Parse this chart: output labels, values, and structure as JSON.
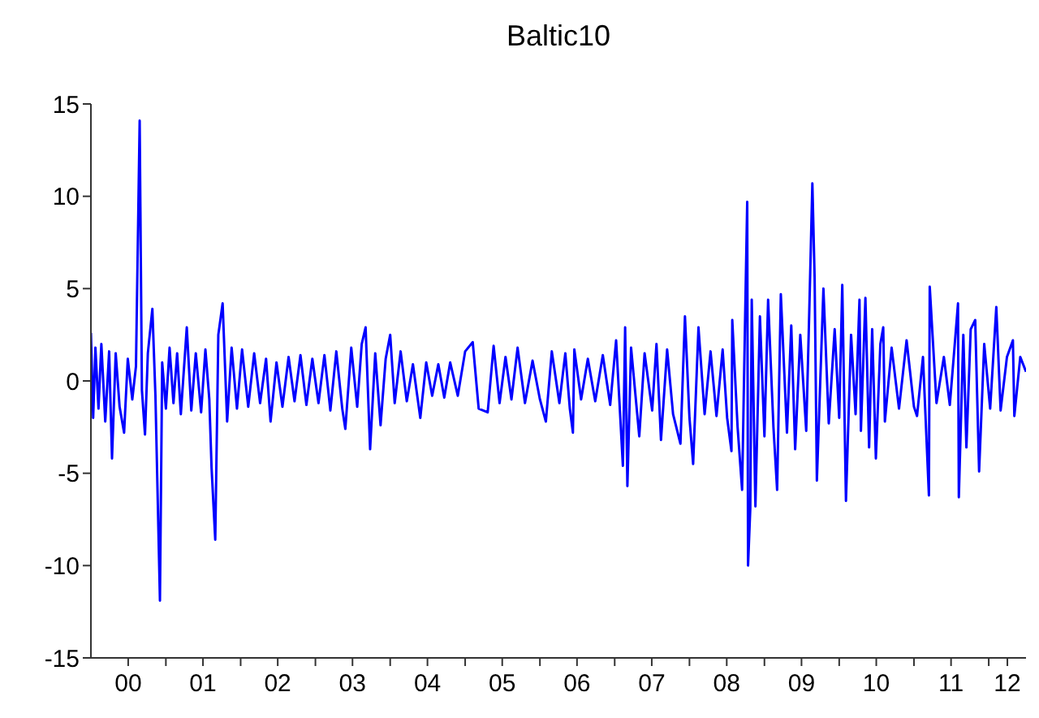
{
  "chart_data": {
    "type": "line",
    "title": "Baltic10",
    "color": "#0000ff",
    "xlim": [
      "2000-01-01",
      "2012-07-01"
    ],
    "xticks": [
      {
        "value": "2000-07-01",
        "label": "00"
      },
      {
        "value": "2001-01-01",
        "label": null
      },
      {
        "value": "2001-07-01",
        "label": "01"
      },
      {
        "value": "2002-01-01",
        "label": null
      },
      {
        "value": "2002-07-01",
        "label": "02"
      },
      {
        "value": "2003-01-01",
        "label": null
      },
      {
        "value": "2003-07-01",
        "label": "03"
      },
      {
        "value": "2004-01-01",
        "label": null
      },
      {
        "value": "2004-07-01",
        "label": "04"
      },
      {
        "value": "2005-01-01",
        "label": null
      },
      {
        "value": "2005-07-01",
        "label": "05"
      },
      {
        "value": "2006-01-01",
        "label": null
      },
      {
        "value": "2006-07-01",
        "label": "06"
      },
      {
        "value": "2007-01-01",
        "label": null
      },
      {
        "value": "2007-07-01",
        "label": "07"
      },
      {
        "value": "2008-01-01",
        "label": null
      },
      {
        "value": "2008-07-01",
        "label": "08"
      },
      {
        "value": "2009-01-01",
        "label": null
      },
      {
        "value": "2009-07-01",
        "label": "09"
      },
      {
        "value": "2010-01-01",
        "label": null
      },
      {
        "value": "2010-07-01",
        "label": "10"
      },
      {
        "value": "2011-01-01",
        "label": null
      },
      {
        "value": "2011-07-01",
        "label": "11"
      },
      {
        "value": "2012-01-01",
        "label": null
      },
      {
        "value": "2012-04-01",
        "label": "12"
      }
    ],
    "ylim": [
      -15,
      15
    ],
    "yticks": [
      -15,
      -10,
      -5,
      0,
      5,
      10,
      15
    ],
    "x": [
      "2000-01-01",
      "2000-01-12",
      "2000-01-23",
      "2000-02-07",
      "2000-02-21",
      "2000-03-11",
      "2000-03-30",
      "2000-04-13",
      "2000-05-01",
      "2000-05-20",
      "2000-06-11",
      "2000-06-29",
      "2000-07-21",
      "2000-08-08",
      "2000-08-26",
      "2000-09-06",
      "2000-09-21",
      "2000-10-05",
      "2000-10-27",
      "2000-11-11",
      "2000-12-03",
      "2000-12-14",
      "2001-01-01",
      "2001-01-19",
      "2001-02-07",
      "2001-02-25",
      "2001-03-15",
      "2001-04-13",
      "2001-05-05",
      "2001-05-27",
      "2001-06-22",
      "2001-07-13",
      "2001-08-01",
      "2001-08-12",
      "2001-08-30",
      "2001-09-14",
      "2001-10-05",
      "2001-10-27",
      "2001-11-18",
      "2001-12-14",
      "2002-01-08",
      "2002-02-07",
      "2002-03-08",
      "2002-04-06",
      "2002-05-05",
      "2002-05-27",
      "2002-06-25",
      "2002-07-24",
      "2002-08-23",
      "2002-09-21",
      "2002-10-20",
      "2002-11-18",
      "2002-12-17",
      "2003-01-16",
      "2003-02-14",
      "2003-03-15",
      "2003-04-13",
      "2003-05-12",
      "2003-05-27",
      "2003-06-25",
      "2003-07-24",
      "2003-08-15",
      "2003-09-03",
      "2003-09-25",
      "2003-10-20",
      "2003-11-15",
      "2003-12-10",
      "2004-01-01",
      "2004-01-23",
      "2004-02-21",
      "2004-03-22",
      "2004-04-21",
      "2004-05-27",
      "2004-06-25",
      "2004-07-24",
      "2004-08-23",
      "2004-09-21",
      "2004-10-20",
      "2004-11-26",
      "2005-01-01",
      "2005-02-07",
      "2005-03-08",
      "2005-04-21",
      "2005-05-20",
      "2005-06-18",
      "2005-07-17",
      "2005-08-15",
      "2005-09-14",
      "2005-10-20",
      "2005-11-26",
      "2006-01-01",
      "2006-01-30",
      "2006-02-28",
      "2006-04-06",
      "2006-05-05",
      "2006-05-27",
      "2006-06-11",
      "2006-06-18",
      "2006-07-21",
      "2006-08-23",
      "2006-09-28",
      "2006-11-04",
      "2006-12-10",
      "2007-01-08",
      "2007-02-10",
      "2007-02-21",
      "2007-03-04",
      "2007-03-22",
      "2007-05-01",
      "2007-05-27",
      "2007-07-03",
      "2007-07-24",
      "2007-08-15",
      "2007-09-14",
      "2007-10-13",
      "2007-11-18",
      "2007-12-10",
      "2008-01-01",
      "2008-01-19",
      "2008-02-14",
      "2008-03-15",
      "2008-04-13",
      "2008-05-12",
      "2008-06-11",
      "2008-07-03",
      "2008-07-24",
      "2008-07-28",
      "2008-08-23",
      "2008-09-14",
      "2008-09-28",
      "2008-10-09",
      "2008-10-13",
      "2008-10-24",
      "2008-10-31",
      "2008-11-18",
      "2008-12-10",
      "2009-01-01",
      "2009-01-19",
      "2009-02-14",
      "2009-03-04",
      "2009-03-22",
      "2009-04-21",
      "2009-05-12",
      "2009-05-31",
      "2009-06-25",
      "2009-07-24",
      "2009-08-08",
      "2009-08-23",
      "2009-09-03",
      "2009-09-14",
      "2009-10-16",
      "2009-11-11",
      "2009-12-10",
      "2010-01-01",
      "2010-01-16",
      "2010-02-03",
      "2010-02-28",
      "2010-03-22",
      "2010-04-10",
      "2010-04-17",
      "2010-05-09",
      "2010-05-27",
      "2010-06-11",
      "2010-06-29",
      "2010-07-21",
      "2010-08-04",
      "2010-08-12",
      "2010-09-14",
      "2010-10-20",
      "2010-11-26",
      "2011-01-01",
      "2011-01-16",
      "2011-02-14",
      "2011-03-15",
      "2011-03-19",
      "2011-04-21",
      "2011-05-27",
      "2011-06-25",
      "2011-07-17",
      "2011-08-04",
      "2011-08-08",
      "2011-08-30",
      "2011-09-14",
      "2011-10-05",
      "2011-10-27",
      "2011-11-15",
      "2011-12-10",
      "2012-01-08",
      "2012-02-07",
      "2012-02-28",
      "2012-03-30",
      "2012-04-28",
      "2012-05-05",
      "2012-06-03",
      "2012-07-01"
    ],
    "values": [
      2.6,
      -2.0,
      1.8,
      -1.5,
      2.0,
      -2.2,
      1.6,
      -4.2,
      1.5,
      -1.4,
      -2.8,
      1.2,
      -1.0,
      0.8,
      14.1,
      -0.5,
      -2.9,
      1.5,
      3.9,
      -0.8,
      -11.9,
      1.0,
      -1.5,
      1.8,
      -1.2,
      1.5,
      -1.8,
      2.9,
      -1.6,
      1.5,
      -1.7,
      1.7,
      -1.0,
      -4.7,
      -8.6,
      2.5,
      4.2,
      -2.2,
      1.8,
      -1.5,
      1.7,
      -1.4,
      1.5,
      -1.2,
      1.2,
      -2.2,
      1.0,
      -1.4,
      1.3,
      -1.1,
      1.4,
      -1.3,
      1.2,
      -1.2,
      1.4,
      -1.6,
      1.6,
      -1.5,
      -2.6,
      1.8,
      -1.4,
      2.0,
      2.9,
      -3.7,
      1.5,
      -2.4,
      1.2,
      2.5,
      -1.2,
      1.6,
      -1.1,
      0.9,
      -2.0,
      1.0,
      -0.8,
      0.9,
      -0.9,
      1.0,
      -0.8,
      1.6,
      2.1,
      -1.5,
      -1.7,
      1.9,
      -1.2,
      1.3,
      -1.0,
      1.8,
      -1.2,
      1.1,
      -1.0,
      -2.2,
      1.6,
      -1.2,
      1.5,
      -1.5,
      -2.8,
      1.7,
      -1.0,
      1.2,
      -1.1,
      1.4,
      -1.3,
      2.2,
      -4.6,
      2.9,
      -5.7,
      1.8,
      -3.0,
      1.5,
      -1.6,
      2.0,
      -3.2,
      1.7,
      -1.8,
      -3.4,
      3.5,
      -2.0,
      -4.5,
      2.9,
      -1.8,
      1.6,
      -1.9,
      1.7,
      -2.0,
      -3.8,
      3.3,
      -2.5,
      -5.9,
      3.0,
      9.7,
      -10.0,
      -6.9,
      4.4,
      -6.8,
      3.5,
      -3.0,
      4.4,
      -2.5,
      -5.9,
      4.7,
      -2.8,
      3.0,
      -3.7,
      2.5,
      -2.7,
      3.8,
      10.7,
      5.6,
      -5.4,
      5.0,
      -2.3,
      2.8,
      -2.0,
      5.2,
      -6.5,
      2.5,
      -1.8,
      4.4,
      -2.7,
      4.5,
      -3.6,
      2.8,
      -4.2,
      2.0,
      2.9,
      -2.2,
      1.8,
      -1.5,
      2.2,
      -1.4,
      -1.9,
      1.3,
      -6.2,
      5.1,
      -1.2,
      1.3,
      -1.3,
      1.7,
      4.2,
      -6.3,
      2.5,
      -3.6,
      2.8,
      3.3,
      -4.9,
      2.0,
      -1.5,
      4.0,
      -1.6,
      1.3,
      2.2,
      -1.9,
      1.3,
      0.5
    ]
  }
}
